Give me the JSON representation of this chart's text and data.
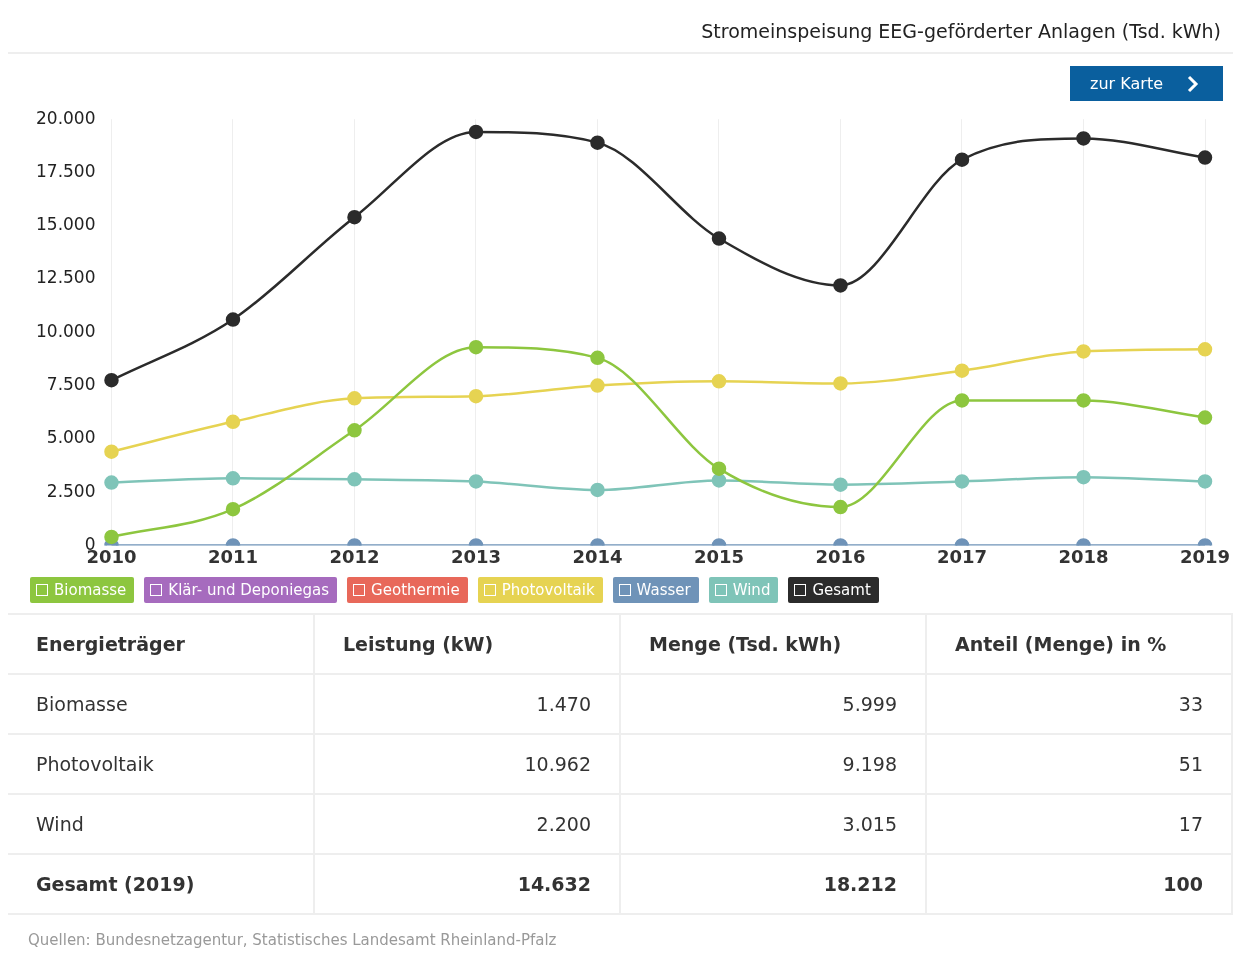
{
  "chart_data": [
    {
      "type": "line",
      "title": "Stromeinspeisung EEG-geförderter Anlagen (Tsd. kWh)",
      "categories": [
        "2010",
        "2011",
        "2012",
        "2013",
        "2014",
        "2015",
        "2016",
        "2017",
        "2018",
        "2019"
      ],
      "series": [
        {
          "name": "Biomasse",
          "color": "#8dc63f",
          "values": [
            400,
            1700,
            5400,
            9300,
            8800,
            3600,
            1800,
            6800,
            6800,
            6000
          ]
        },
        {
          "name": "Klär- und Deponiegas",
          "color": "#a66bbe",
          "values": [
            null,
            null,
            null,
            null,
            null,
            null,
            null,
            null,
            null,
            null
          ]
        },
        {
          "name": "Geothermie",
          "color": "#e8685a",
          "values": [
            null,
            null,
            null,
            null,
            null,
            null,
            null,
            null,
            null,
            null
          ]
        },
        {
          "name": "Photovoltaik",
          "color": "#e6d352",
          "values": [
            4400,
            5800,
            6900,
            7000,
            7500,
            7700,
            7600,
            8200,
            9100,
            9200
          ]
        },
        {
          "name": "Wasser",
          "color": "#6f93b8",
          "values": [
            0,
            0,
            0,
            0,
            0,
            0,
            0,
            0,
            0,
            0
          ]
        },
        {
          "name": "Wind",
          "color": "#7fc4b8",
          "values": [
            2950,
            3150,
            3100,
            3000,
            2600,
            3050,
            2850,
            3000,
            3200,
            3000
          ]
        },
        {
          "name": "Gesamt",
          "color": "#2b2b2b",
          "values": [
            7750,
            10600,
            15400,
            19400,
            18900,
            14400,
            12200,
            18100,
            19100,
            18200
          ]
        }
      ],
      "ylim": [
        0,
        20000
      ],
      "yticks": [
        {
          "value": 0,
          "label": "0"
        },
        {
          "value": 2500,
          "label": "2.500"
        },
        {
          "value": 5000,
          "label": "5.000"
        },
        {
          "value": 7500,
          "label": "7.500"
        },
        {
          "value": 10000,
          "label": "10.000"
        },
        {
          "value": 12500,
          "label": "12.500"
        },
        {
          "value": 15000,
          "label": "15.000"
        },
        {
          "value": 17500,
          "label": "17.500"
        },
        {
          "value": 20000,
          "label": "20.000"
        }
      ],
      "grid": "x",
      "legend": "bottom",
      "marker": "circle",
      "annotations": [
        "zur Karte"
      ]
    },
    {
      "type": "other",
      "xlabel": "Energieträger",
      "categories": [
        "Biomasse",
        "Photovoltaik",
        "Wind",
        "Gesamt (2019)"
      ],
      "series": [
        {
          "name": "Leistung (kW)",
          "values": [
            1470,
            10962,
            2200,
            14632
          ],
          "value_labels": [
            "1.470",
            "10.962",
            "2.200",
            "14.632"
          ]
        },
        {
          "name": "Menge (Tsd. kWh)",
          "values": [
            5999,
            9198,
            3015,
            18212
          ],
          "value_labels": [
            "5.999",
            "9.198",
            "3.015",
            "18.212"
          ]
        },
        {
          "name": "Anteil (Menge) in %",
          "values": [
            33,
            51,
            17,
            100
          ]
        }
      ],
      "data_labels": true,
      "annotations": [
        "Quellen:  Bundesnetzagentur, Statistisches Landesamt Rheinland-Pfalz"
      ]
    }
  ]
}
